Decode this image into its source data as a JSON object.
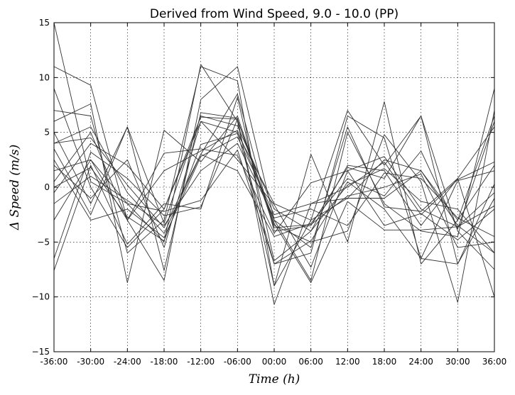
{
  "chart_data": {
    "type": "line",
    "title": "Derived from Wind Speed, 9.0 - 10.0 (PP)",
    "xlabel": "Time (h)",
    "ylabel": "Δ Speed (m/s)",
    "x": [
      "-36:00",
      "-30:00",
      "-24:00",
      "-18:00",
      "-12:00",
      "-06:00",
      "00:00",
      "06:00",
      "12:00",
      "18:00",
      "24:00",
      "30:00",
      "36:00"
    ],
    "y_ticks": [
      "−15",
      "−10",
      "−5",
      "0",
      "5",
      "10",
      "15"
    ],
    "ylim": [
      -15,
      15
    ],
    "grid": true,
    "line_color": "#333333",
    "series": [
      {
        "values": [
          15,
          0.5,
          -1.5,
          -5,
          11.2,
          6,
          -9,
          -3,
          7,
          2,
          6.5,
          -7,
          0.3
        ]
      },
      {
        "values": [
          11,
          9.3,
          -3,
          -8.5,
          8,
          11,
          -3,
          -8.5,
          5,
          -1.5,
          -4,
          -4.5,
          9
        ]
      },
      {
        "values": [
          9,
          0,
          -5.5,
          -2,
          6,
          5,
          -7,
          -6,
          6.5,
          4.5,
          -6.5,
          0.6,
          1.5
        ]
      },
      {
        "values": [
          7,
          6.5,
          -6,
          -3,
          11,
          9.7,
          -9,
          3,
          -5,
          7.8,
          -7,
          -3,
          6.5
        ]
      },
      {
        "values": [
          6,
          7.6,
          -8.7,
          5.2,
          2.3,
          6.5,
          -3.5,
          -5,
          -4,
          4.8,
          0.5,
          -10.5,
          7
        ]
      },
      {
        "values": [
          5,
          -1.5,
          5.5,
          -7.6,
          6.8,
          6.3,
          -10.7,
          -1.5,
          0,
          2.3,
          -2.5,
          0.7,
          2.3
        ]
      },
      {
        "values": [
          4,
          5.5,
          -0.5,
          -4.2,
          3,
          8.5,
          -4,
          -3.5,
          1.8,
          0.8,
          6.5,
          -4,
          -7.5
        ]
      },
      {
        "values": [
          3.5,
          -2.5,
          5.5,
          -3.3,
          6.5,
          5.6,
          -2,
          -4,
          2,
          1.5,
          -3.5,
          0.8,
          5.5
        ]
      },
      {
        "values": [
          2.5,
          -3,
          -2,
          -4.6,
          2.8,
          4.6,
          -2.5,
          -1.5,
          -1,
          -1,
          1.5,
          -3.5,
          -6
        ]
      },
      {
        "values": [
          2,
          -1,
          2.5,
          -5.5,
          6,
          2.5,
          -1.6,
          -7.3,
          1.5,
          2.8,
          -2,
          -3.6,
          -1.7
        ]
      },
      {
        "values": [
          1.5,
          2.5,
          -3,
          3.1,
          3.5,
          2.9,
          -4.2,
          0.4,
          1.5,
          -3.5,
          -2.4,
          -4.8,
          -2
        ]
      },
      {
        "values": [
          0.5,
          5,
          -3,
          1.5,
          3.3,
          5.2,
          -3,
          -5.5,
          5.5,
          -1.8,
          -2.2,
          0.8,
          -10
        ]
      },
      {
        "values": [
          0,
          1.8,
          -2.7,
          -4.9,
          3.9,
          4.9,
          -1.5,
          -3,
          -1,
          2.5,
          1.5,
          -3,
          2
        ]
      },
      {
        "values": [
          -0.5,
          4,
          2,
          -2,
          6.4,
          6.2,
          -3.3,
          -8.7,
          -1.3,
          -3.9,
          -3.9,
          -3.6,
          -0.5
        ]
      },
      {
        "values": [
          -1.5,
          1,
          -1.2,
          -3.5,
          1.5,
          4,
          -2.8,
          -2,
          -3.5,
          1.3,
          0.8,
          -2.8,
          -4.5
        ]
      },
      {
        "values": [
          -3,
          2.5,
          -1.5,
          -2.2,
          -1.2,
          3.4,
          -7,
          -4.9,
          0.5,
          -2,
          -6.5,
          -7,
          -1
        ]
      },
      {
        "values": [
          -6.5,
          3.2,
          0.8,
          -2.6,
          -1.8,
          6.2,
          -3.7,
          -3.4,
          -0.8,
          0,
          1.2,
          -5.5,
          -5
        ]
      },
      {
        "values": [
          -7.6,
          2,
          -5.2,
          -1.5,
          -2,
          8.2,
          -6.7,
          -4,
          0.2,
          1.7,
          -1.3,
          -2,
          -6
        ]
      },
      {
        "values": [
          4,
          4.5,
          0.2,
          -3.7,
          3,
          1.5,
          -4.5,
          -3.3,
          0.8,
          -0.8,
          3.3,
          -3.8,
          6
        ]
      }
    ]
  }
}
